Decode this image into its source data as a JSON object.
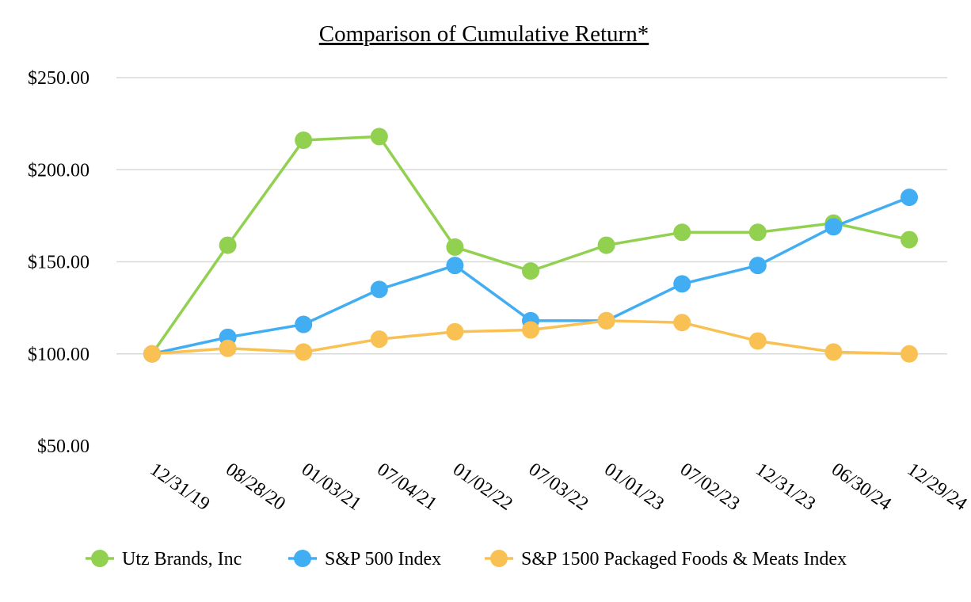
{
  "chart_data": {
    "type": "line",
    "title": "Comparison of Cumulative Return*",
    "xlabel": "",
    "ylabel": "",
    "categories": [
      "12/31/19",
      "08/28/20",
      "01/03/21",
      "07/04/21",
      "01/02/22",
      "07/03/22",
      "01/01/23",
      "07/02/23",
      "12/31/23",
      "06/30/24",
      "12/29/24"
    ],
    "y_ticks": [
      50,
      100,
      150,
      200,
      250
    ],
    "y_tick_labels": [
      "$50.00",
      "$100.00",
      "$150.00",
      "$200.00",
      "$250.00"
    ],
    "ylim": [
      50,
      250
    ],
    "grid": true,
    "legend_position": "bottom",
    "series": [
      {
        "name": "Utz Brands, Inc",
        "color": "#92d050",
        "values": [
          100,
          159,
          216,
          218,
          158,
          145,
          159,
          166,
          166,
          171,
          162
        ]
      },
      {
        "name": "S&P 500 Index",
        "color": "#41adf2",
        "values": [
          100,
          109,
          116,
          135,
          148,
          118,
          118,
          138,
          148,
          169,
          185
        ]
      },
      {
        "name": "S&P 1500 Packaged Foods & Meats Index",
        "color": "#f9c153",
        "values": [
          100,
          103,
          101,
          108,
          112,
          113,
          118,
          117,
          107,
          101,
          100
        ]
      }
    ]
  }
}
